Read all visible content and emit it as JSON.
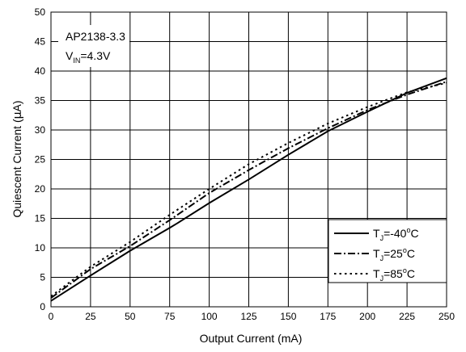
{
  "annotations": {
    "device": "AP2138-3.3",
    "vin_main": "V",
    "vin_sub": "IN",
    "vin_value": "=4.3V"
  },
  "chart_data": {
    "type": "line",
    "xlabel": "Output Current (mA)",
    "ylabel_prefix": "Quiescent Current (",
    "ylabel_mu": "μ",
    "ylabel_suffix": "A)",
    "xlim": [
      0,
      250
    ],
    "ylim": [
      0,
      50
    ],
    "xticks": [
      0,
      25,
      50,
      75,
      100,
      125,
      150,
      175,
      200,
      225,
      250
    ],
    "yticks": [
      0,
      5,
      10,
      15,
      20,
      25,
      30,
      35,
      40,
      45,
      50
    ],
    "grid": true,
    "legend_position": "bottom-right",
    "series": [
      {
        "name_main": "T",
        "name_sub": "J",
        "name_value": "=-40",
        "name_deg": "o",
        "name_unit": "C",
        "style": "solid",
        "x": [
          0,
          25,
          50,
          75,
          80,
          100,
          125,
          150,
          175,
          200,
          225,
          250
        ],
        "y": [
          1.0,
          5.3,
          9.5,
          13.4,
          14.2,
          17.6,
          21.6,
          25.8,
          29.8,
          33.1,
          36.3,
          38.8
        ]
      },
      {
        "name_main": "T",
        "name_sub": "J",
        "name_value": "=25",
        "name_deg": "o",
        "name_unit": "C",
        "style": "dashdot",
        "x": [
          0,
          25,
          50,
          75,
          100,
          125,
          150,
          175,
          200,
          225,
          250
        ],
        "y": [
          1.5,
          6.4,
          10.3,
          14.7,
          19.3,
          23.2,
          26.9,
          30.3,
          33.4,
          36.0,
          38.2
        ]
      },
      {
        "name_main": "T",
        "name_sub": "J",
        "name_value": "=85",
        "name_deg": "o",
        "name_unit": "C",
        "style": "dotted",
        "x": [
          0,
          25,
          50,
          75,
          100,
          125,
          150,
          175,
          200,
          225,
          250
        ],
        "y": [
          1.8,
          6.8,
          11.0,
          15.6,
          20.0,
          24.2,
          27.8,
          31.1,
          33.9,
          36.4,
          38.0
        ]
      }
    ]
  }
}
